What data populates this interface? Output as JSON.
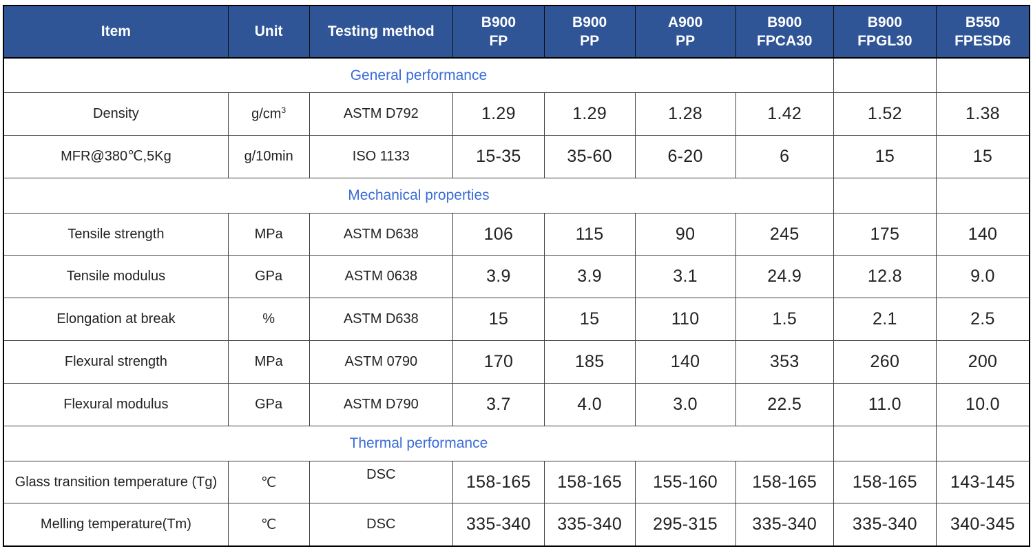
{
  "colors": {
    "header_bg": "#2f5597",
    "header_text": "#ffffff",
    "section_text": "#3a6bd8",
    "inner_border": "#3f3f3f",
    "outer_border": "#000000",
    "body_text": "#222222"
  },
  "table": {
    "columns": [
      {
        "id": "item",
        "lines": [
          "Item"
        ]
      },
      {
        "id": "unit",
        "lines": [
          "Unit"
        ]
      },
      {
        "id": "method",
        "lines": [
          "Testing method"
        ]
      },
      {
        "id": "b900-fp",
        "lines": [
          "B900",
          "FP"
        ]
      },
      {
        "id": "b900-pp",
        "lines": [
          "B900",
          "PP"
        ]
      },
      {
        "id": "a900-pp",
        "lines": [
          "A900",
          "PP"
        ]
      },
      {
        "id": "b900-fpca30",
        "lines": [
          "B900",
          "FPCA30"
        ]
      },
      {
        "id": "b900-fpgl30",
        "lines": [
          "B900",
          "FPGL30"
        ]
      },
      {
        "id": "b550-fpesd6",
        "lines": [
          "B550",
          "FPESD6"
        ]
      }
    ],
    "section_span": 7,
    "section_trailing_empty": 2,
    "rows": [
      {
        "type": "section",
        "label": "General performance"
      },
      {
        "type": "data",
        "item": "Density",
        "unit": "g/cm^3",
        "method": "ASTM D792",
        "values": [
          "1.29",
          "1.29",
          "1.28",
          "1.42",
          "1.52",
          "1.38"
        ]
      },
      {
        "type": "data",
        "item": "MFR@380℃,5Kg",
        "unit": "g/10min",
        "method": "ISO 1133",
        "values": [
          "15-35",
          "35-60",
          "6-20",
          "6",
          "15",
          "15"
        ]
      },
      {
        "type": "section",
        "label": "Mechanical properties"
      },
      {
        "type": "data",
        "item": "Tensile strength",
        "unit": "MPa",
        "method": "ASTM D638",
        "values": [
          "106",
          "115",
          "90",
          "245",
          "175",
          "140"
        ]
      },
      {
        "type": "data",
        "item": "Tensile modulus",
        "unit": "GPa",
        "method": "ASTM 0638",
        "values": [
          "3.9",
          "3.9",
          "3.1",
          "24.9",
          "12.8",
          "9.0"
        ]
      },
      {
        "type": "data",
        "item": "Elongation at break",
        "unit": "%",
        "method": "ASTM D638",
        "values": [
          "15",
          "15",
          "110",
          "1.5",
          "2.1",
          "2.5"
        ]
      },
      {
        "type": "data",
        "item": "Flexural strength",
        "unit": "MPa",
        "method": "ASTM 0790",
        "values": [
          "170",
          "185",
          "140",
          "353",
          "260",
          "200"
        ]
      },
      {
        "type": "data",
        "item": "Flexural modulus",
        "unit": "GPa",
        "method": "ASTM D790",
        "values": [
          "3.7",
          "4.0",
          "3.0",
          "22.5",
          "11.0",
          "10.0"
        ]
      },
      {
        "type": "section",
        "label": "Thermal performance"
      },
      {
        "type": "data",
        "item": "Glass transition temperature (Tg)",
        "unit": "℃",
        "method": "DSC",
        "method_top": true,
        "values": [
          "158-165",
          "158-165",
          "155-160",
          "158-165",
          "158-165",
          "143-145"
        ]
      },
      {
        "type": "data",
        "item": "Melling temperature(Tm)",
        "unit": "℃",
        "method": "DSC",
        "values": [
          "335-340",
          "335-340",
          "295-315",
          "335-340",
          "335-340",
          "340-345"
        ]
      }
    ]
  }
}
